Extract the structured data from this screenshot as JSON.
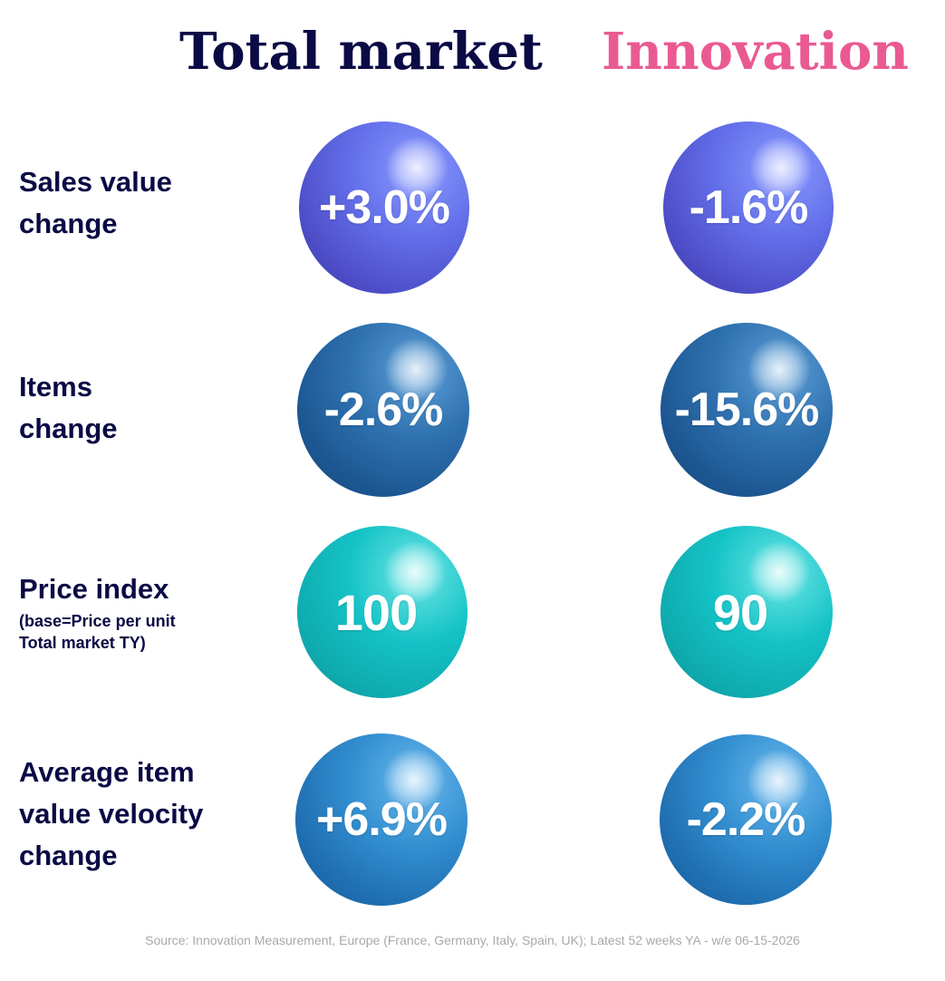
{
  "columns": {
    "total_market": "Total market",
    "innovation": "Innovation"
  },
  "rows": {
    "sales_value": {
      "label_line1": "Sales value",
      "label_line2": "change",
      "total_market": "+3.0%",
      "innovation": "-1.6%"
    },
    "items": {
      "label_line1": "Items",
      "label_line2": "change",
      "total_market": "-2.6%",
      "innovation": "-15.6%"
    },
    "price_index": {
      "label_line1": "Price index",
      "sub_line1": "(base=Price per unit",
      "sub_line2": "Total market TY)",
      "total_market": "100",
      "innovation": "90"
    },
    "velocity": {
      "label_line1": "Average item",
      "label_line2": "value velocity",
      "label_line3": "change",
      "total_market": "+6.9%",
      "innovation": "-2.2%"
    }
  },
  "colors": {
    "heading_dark": "#0a0a45",
    "heading_pink": "#ea5a92",
    "sphere_sales": "#6470ea",
    "sphere_items": "#1d5793",
    "sphere_price": "#14c3c6",
    "sphere_velocity": "#1f6fb2",
    "source_text": "#a9a9a9"
  },
  "source": "Source: Innovation Measurement, Europe (France, Germany, Italy, Spain, UK); Latest 52 weeks YA - w/e 06-15-2026"
}
